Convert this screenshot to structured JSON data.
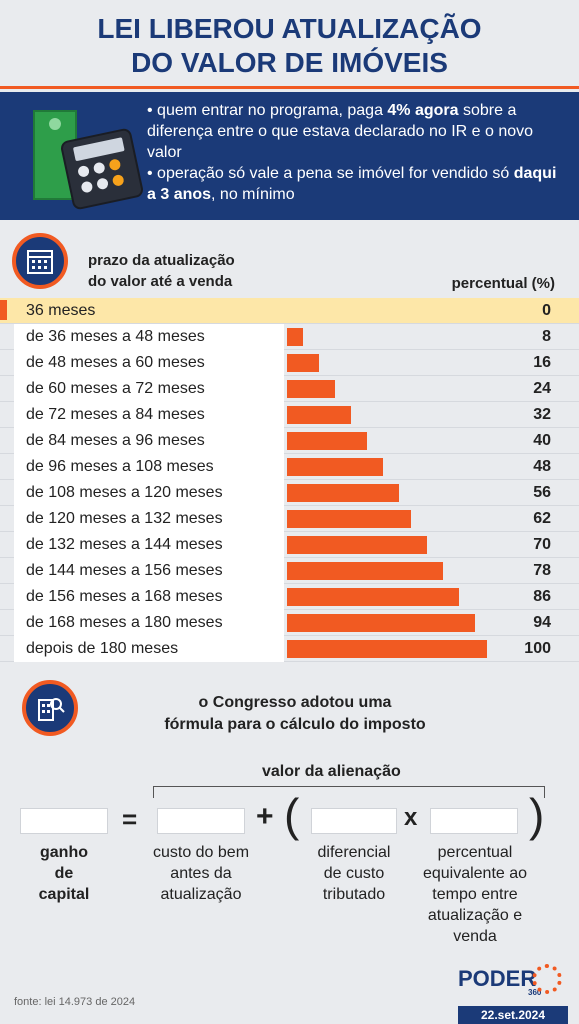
{
  "title": {
    "line1": "LEI LIBEROU ATUALIZAÇÃO",
    "line2": "DO VALOR DE IMÓVEIS"
  },
  "info": {
    "b1_pre": "• quem entrar no programa, paga ",
    "b1_bold": "4% agora",
    "b1_post": " sobre a diferença entre o que estava declarado no IR e o novo valor",
    "b2_pre": "• operação só vale a pena se imóvel for vendido só ",
    "b2_bold": "daqui a 3 anos",
    "b2_post": ", no mínimo"
  },
  "prazo": {
    "head_line1": "prazo da atualização",
    "head_line2": "do valor até a venda",
    "perc_head": "percentual (%)"
  },
  "rows": [
    {
      "label": "36 meses",
      "value": "0"
    },
    {
      "label": "de 36 meses a 48 meses",
      "value": "8"
    },
    {
      "label": "de 48 meses a 60 meses",
      "value": "16"
    },
    {
      "label": "de 60 meses a 72 meses",
      "value": "24"
    },
    {
      "label": "de 72 meses a 84 meses",
      "value": "32"
    },
    {
      "label": "de 84 meses a 96 meses",
      "value": "40"
    },
    {
      "label": "de 96 meses a 108 meses",
      "value": "48"
    },
    {
      "label": "de 108 meses a 120 meses",
      "value": "56"
    },
    {
      "label": "de 120 meses a 132 meses",
      "value": "62"
    },
    {
      "label": "de 132 meses a 144 meses",
      "value": "70"
    },
    {
      "label": "de 144 meses a 156 meses",
      "value": "78"
    },
    {
      "label": "de 156 meses a 168 meses",
      "value": "86"
    },
    {
      "label": "de 168 meses a 180 meses",
      "value": "94"
    },
    {
      "label": "depois de 180 meses",
      "value": "100"
    }
  ],
  "formula": {
    "congress_line1": "o Congresso adotou uma",
    "congress_line2": "fórmula para o cálculo do imposto",
    "alienacao": "valor da alienação",
    "eq": "=",
    "plus": "+",
    "lparen": "(",
    "rparen": ")",
    "times": "x",
    "ganho": [
      "ganho",
      "de",
      "capital"
    ],
    "custo": [
      "custo do bem",
      "antes da",
      "atualização"
    ],
    "diferencial": [
      "diferencial",
      "de custo",
      "tributado"
    ],
    "percentual": [
      "percentual",
      "equivalente ao",
      "tempo entre",
      "atualização e",
      "venda"
    ]
  },
  "footer": {
    "source": "fonte: lei 14.973 de 2024",
    "logo": "PODER",
    "logo_sub": "360",
    "date": "22.set.2024"
  },
  "colors": {
    "navy": "#1b3a78",
    "orange": "#f15a22",
    "highlight": "#fde7a8"
  }
}
